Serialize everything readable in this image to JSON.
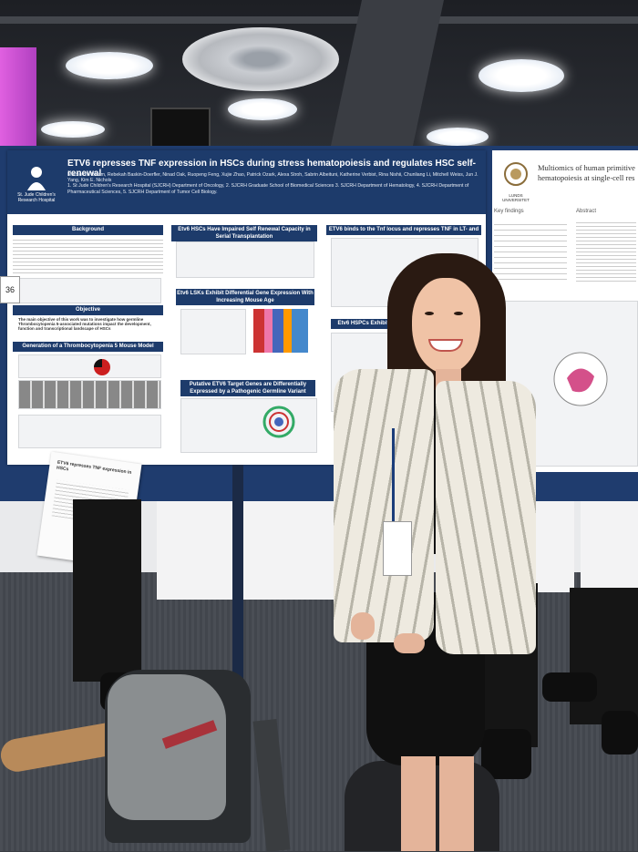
{
  "poster": {
    "title": "ETV6 represses TNF expression in HSCs during stress hematopoiesis and regulates HSC self-renewal",
    "authors": "Mackenzie Bloom, Rebekah Baskin-Doerfler, Ninad Oak, Ruopeng Feng, Xujie Zhao, Patrick Ozark, Alexa Stroh, Sabrin Albeituni, Katherine Verbist, Rina Nishii, Chunliang Li, Mitchell Weiss, Jun J. Yang, Kim E. Nichols",
    "affiliations": "1. St Jude Children's Research Hospital (SJCRH) Department of Oncology, 2. SJCRH Graduate School of Biomedical Sciences 3. SJCRH Department of Hematology, 4. SJCRH Department of Pharmaceutical Sciences, 5. SJCRH Department of Tumor Cell Biology.",
    "logo_text": "St. Jude Children's Research Hospital",
    "sections": {
      "background": "Background",
      "objective": "Objective",
      "objective_text": "The main objective of this work was to investigate how germline Thrombocytopenia 5-associated mutations impact the development, function and transcriptional landscape of HSCs",
      "generation": "Generation of a Thrombocytopenia 5 Mouse Model",
      "hsc_renewal": "Etv6 HSCs Have Impaired Self Renewal Capacity in Serial Transplantation",
      "lsk": "Etv6 LSKs Exhibit Differential Gene Expression With Increasing Mouse Age",
      "putative": "Putative ETV6 Target Genes are Differentially Expressed by a Pathogenic Germline Variant",
      "etv6_binds": "ETV6 binds to the Tnf locus and represses TNF in LT- and ST-HSCs",
      "hspcs": "Etv6 HSPCs Exhibit ... and Cycling"
    },
    "board_number": "36"
  },
  "poster_right": {
    "institution": "LUNDS UNIVERSITET",
    "title": "Multiomics of human primitive hematopoiesis at single-cell res",
    "key_findings": "Key findings",
    "abstract": "Abstract",
    "methods": "ods"
  },
  "handout": {
    "title": "ETV6 represses TNF expression in HSCs"
  },
  "colors": {
    "poster_blue": "#1d3b6b",
    "board_blue": "#1f3c6e",
    "blazer_stripe": "#b7b4a8"
  }
}
